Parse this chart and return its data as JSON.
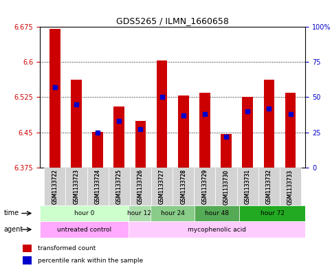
{
  "title": "GDS5265 / ILMN_1660658",
  "samples": [
    "GSM1133722",
    "GSM1133723",
    "GSM1133724",
    "GSM1133725",
    "GSM1133726",
    "GSM1133727",
    "GSM1133728",
    "GSM1133729",
    "GSM1133730",
    "GSM1133731",
    "GSM1133732",
    "GSM1133733"
  ],
  "red_values": [
    6.671,
    6.563,
    6.451,
    6.505,
    6.474,
    6.604,
    6.528,
    6.535,
    6.447,
    6.525,
    6.563,
    6.534
  ],
  "blue_values_pct": [
    57,
    45,
    25,
    33,
    27,
    50,
    37,
    38,
    22,
    40,
    42,
    38
  ],
  "ylim": [
    6.375,
    6.675
  ],
  "yticks": [
    6.375,
    6.45,
    6.525,
    6.6,
    6.675
  ],
  "y_right_ticks": [
    0,
    25,
    50,
    75,
    100
  ],
  "y_right_labels": [
    "0",
    "25",
    "50",
    "75",
    "100%"
  ],
  "bar_color": "#cc0000",
  "blue_color": "#0000cc",
  "baseline": 6.375,
  "time_groups": [
    {
      "label": "hour 0",
      "start": 0,
      "end": 4,
      "color": "#ccffcc"
    },
    {
      "label": "hour 12",
      "start": 4,
      "end": 5,
      "color": "#aaffaa"
    },
    {
      "label": "hour 24",
      "start": 5,
      "end": 7,
      "color": "#88ee88"
    },
    {
      "label": "hour 48",
      "start": 7,
      "end": 9,
      "color": "#66dd66"
    },
    {
      "label": "hour 72",
      "start": 9,
      "end": 12,
      "color": "#44cc44"
    }
  ],
  "agent_groups": [
    {
      "label": "untreated control",
      "start": 0,
      "end": 4,
      "color": "#ffaaff"
    },
    {
      "label": "mycophenolic acid",
      "start": 4,
      "end": 12,
      "color": "#ffccff"
    }
  ],
  "legend_red": "transformed count",
  "legend_blue": "percentile rank within the sample",
  "bg_color": "#ffffff",
  "bar_width": 0.5,
  "grid_color": "#000000",
  "label_colors": {
    "left": "#cc0000",
    "right": "#0000cc"
  }
}
